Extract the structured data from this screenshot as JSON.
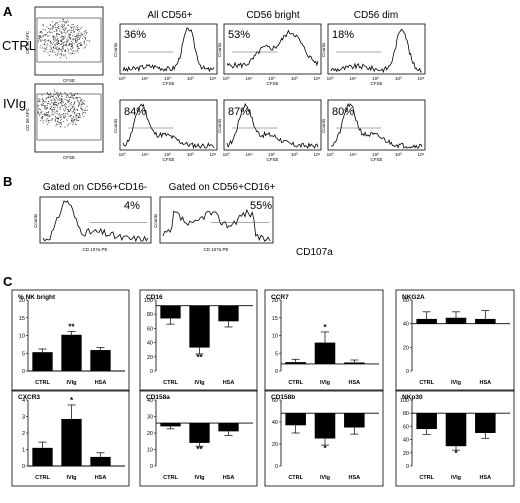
{
  "panels": {
    "A": "A",
    "B": "B",
    "C": "C"
  },
  "panelA": {
    "row_labels": [
      "CTRL",
      "IVIg"
    ],
    "column_titles": [
      "All CD56+",
      "CD56 bright",
      "CD56 dim"
    ],
    "dot_axis": {
      "ylabel": "CD 56 APC",
      "xlabel": "CFSE"
    },
    "hist_axis": {
      "ylabel": "Counts",
      "xlabel": "CFSE",
      "xticks": [
        "10⁰",
        "10¹",
        "10²",
        "10³",
        "10⁴"
      ]
    },
    "percentages": [
      [
        "36%",
        "53%",
        "18%"
      ],
      [
        "84%",
        "87%",
        "80%"
      ]
    ]
  },
  "panelB": {
    "titles": [
      "Gated on CD56+CD16-",
      "Gated on CD56+CD16+"
    ],
    "percentages": [
      "4%",
      "55%"
    ],
    "axis_xlabel_small": "CD 107a PE",
    "xlabel": "CD107a",
    "ylabel": "Counts"
  },
  "chart_data": [
    {
      "type": "bar",
      "title": "% NK bright",
      "categories": [
        "CTRL",
        "IVIg",
        "HSA"
      ],
      "values": [
        5.3,
        10.2,
        5.9
      ],
      "errors": [
        0.9,
        0.9,
        0.7
      ],
      "baseline": 0,
      "ylim": [
        0,
        20
      ],
      "yticks": [
        0,
        5,
        10,
        15,
        20
      ],
      "significance": [
        "",
        "**",
        ""
      ]
    },
    {
      "type": "bar",
      "title": "CD16",
      "categories": [
        "CTRL",
        "IVIg",
        "HSA"
      ],
      "values": [
        74,
        33,
        70
      ],
      "errors": [
        8,
        9,
        8
      ],
      "baseline": 92,
      "ylim": [
        0,
        100
      ],
      "yticks": [
        0,
        20,
        40,
        60,
        80,
        100
      ],
      "significance": [
        "",
        "**",
        ""
      ]
    },
    {
      "type": "bar",
      "title": "CCR7",
      "categories": [
        "CTRL",
        "IVIg",
        "HSA"
      ],
      "values": [
        2.5,
        8,
        2.4
      ],
      "errors": [
        0.8,
        3,
        0.7
      ],
      "baseline": 2,
      "ylim": [
        0,
        20
      ],
      "yticks": [
        0,
        5,
        10,
        15,
        20
      ],
      "significance": [
        "",
        "*",
        ""
      ]
    },
    {
      "type": "bar",
      "title": "NKG2A",
      "categories": [
        "CTRL",
        "IVIg",
        "HSA"
      ],
      "values": [
        44,
        45,
        44
      ],
      "errors": [
        6,
        5,
        7
      ],
      "baseline": 40,
      "ylim": [
        0,
        60
      ],
      "yticks": [
        0,
        20,
        40,
        60
      ],
      "significance": [
        "",
        "",
        ""
      ]
    },
    {
      "type": "bar",
      "title": "CXCR3",
      "categories": [
        "CTRL",
        "IVIg",
        "HSA"
      ],
      "values": [
        1.1,
        2.85,
        0.55
      ],
      "errors": [
        0.35,
        0.85,
        0.25
      ],
      "baseline": 0,
      "ylim": [
        0,
        4
      ],
      "yticks": [
        0,
        1,
        2,
        3,
        4
      ],
      "significance": [
        "",
        "*",
        ""
      ]
    },
    {
      "type": "bar",
      "title": "CD158a",
      "categories": [
        "CTRL",
        "IVIg",
        "HSA"
      ],
      "values": [
        24,
        14,
        21
      ],
      "errors": [
        1.5,
        2,
        2.5
      ],
      "baseline": 26,
      "ylim": [
        0,
        40
      ],
      "yticks": [
        0,
        10,
        20,
        30,
        40
      ],
      "significance": [
        "",
        "**",
        ""
      ]
    },
    {
      "type": "bar",
      "title": "CD158b",
      "categories": [
        "CTRL",
        "IVIg",
        "HSA"
      ],
      "values": [
        37,
        25,
        35
      ],
      "errors": [
        7,
        6,
        6
      ],
      "baseline": 48,
      "ylim": [
        0,
        60
      ],
      "yticks": [
        0,
        20,
        40,
        60
      ],
      "significance": [
        "",
        "*",
        ""
      ]
    },
    {
      "type": "bar",
      "title": "NKp30",
      "categories": [
        "CTRL",
        "IVIg",
        "HSA"
      ],
      "values": [
        56,
        30,
        50
      ],
      "errors": [
        8,
        6,
        8
      ],
      "baseline": 80,
      "ylim": [
        0,
        100
      ],
      "yticks": [
        0,
        20,
        40,
        60,
        80,
        100
      ],
      "significance": [
        "",
        "*",
        ""
      ]
    }
  ]
}
